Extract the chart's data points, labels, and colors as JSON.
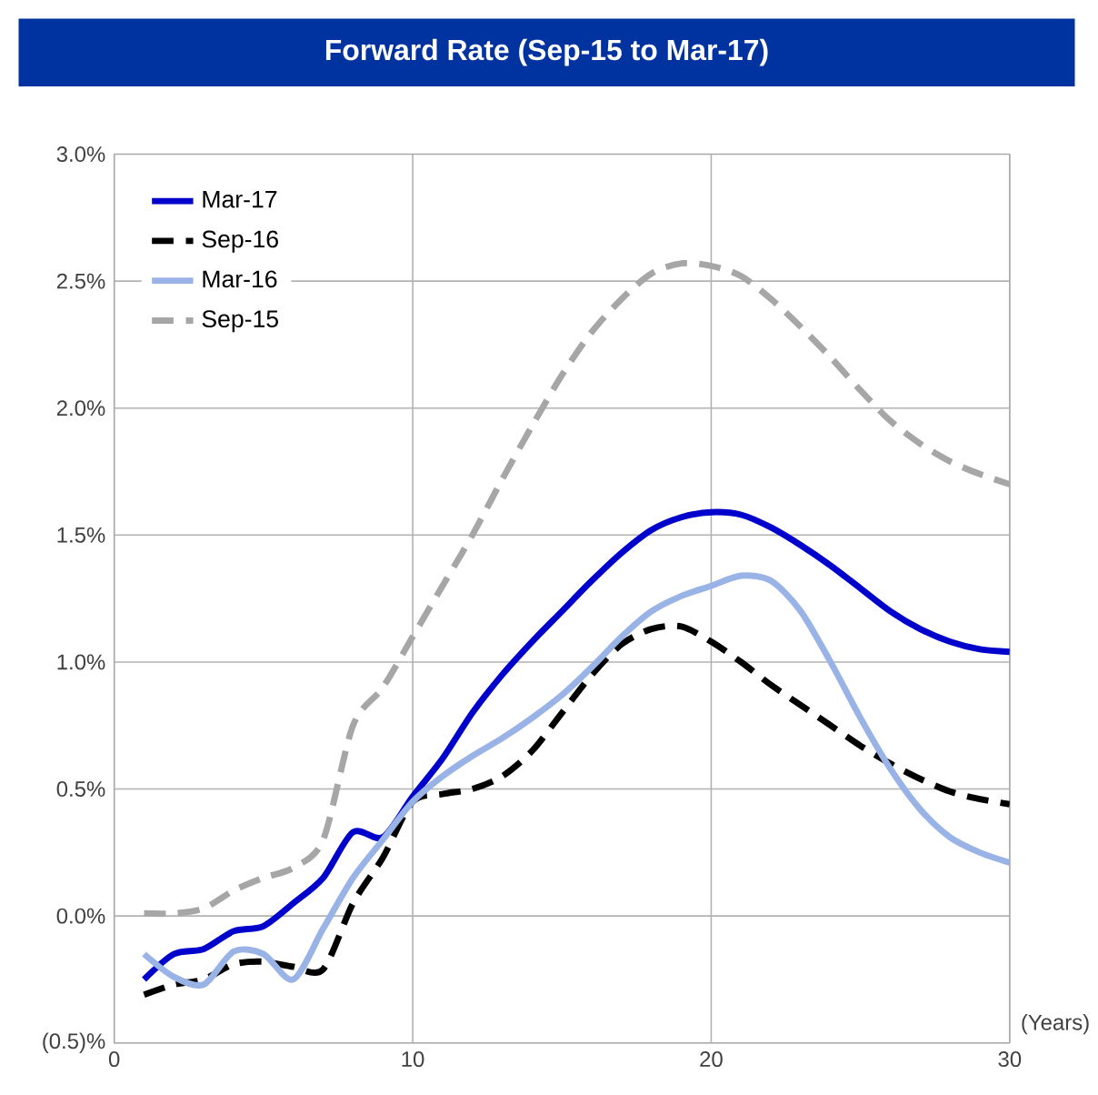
{
  "chart_data": {
    "type": "line",
    "title": "Forward Rate (Sep-15 to Mar-17)",
    "xlabel": "(Years)",
    "x": [
      1,
      2,
      3,
      4,
      5,
      6,
      7,
      8,
      9,
      10,
      11,
      12,
      13,
      14,
      15,
      16,
      17,
      18,
      19,
      20,
      21,
      22,
      23,
      24,
      25,
      26,
      27,
      28,
      29,
      30
    ],
    "series": [
      {
        "name": "Mar-17",
        "color": "#0000cc",
        "line_style": "solid",
        "values": [
          -0.25,
          -0.15,
          -0.13,
          -0.06,
          -0.04,
          0.05,
          0.15,
          0.33,
          0.31,
          0.47,
          0.62,
          0.8,
          0.95,
          1.08,
          1.2,
          1.32,
          1.43,
          1.52,
          1.57,
          1.59,
          1.58,
          1.53,
          1.46,
          1.38,
          1.29,
          1.2,
          1.13,
          1.08,
          1.05,
          1.04
        ]
      },
      {
        "name": "Sep-16",
        "color": "#000000",
        "line_style": "dashed",
        "values": [
          -0.31,
          -0.27,
          -0.25,
          -0.19,
          -0.18,
          -0.2,
          -0.21,
          0.05,
          0.23,
          0.45,
          0.48,
          0.5,
          0.55,
          0.65,
          0.8,
          0.95,
          1.07,
          1.13,
          1.14,
          1.08,
          1.0,
          0.91,
          0.83,
          0.75,
          0.67,
          0.6,
          0.54,
          0.49,
          0.46,
          0.44
        ]
      },
      {
        "name": "Mar-16",
        "color": "#99b3e6",
        "line_style": "solid",
        "values": [
          -0.15,
          -0.24,
          -0.27,
          -0.14,
          -0.15,
          -0.25,
          -0.05,
          0.15,
          0.3,
          0.45,
          0.55,
          0.63,
          0.7,
          0.78,
          0.87,
          0.98,
          1.1,
          1.2,
          1.26,
          1.3,
          1.34,
          1.32,
          1.2,
          1.0,
          0.78,
          0.58,
          0.42,
          0.31,
          0.25,
          0.21
        ]
      },
      {
        "name": "Sep-15",
        "color": "#a6a6a6",
        "line_style": "dashed",
        "values": [
          0.01,
          0.01,
          0.03,
          0.1,
          0.15,
          0.19,
          0.3,
          0.75,
          0.9,
          1.1,
          1.3,
          1.5,
          1.72,
          1.93,
          2.13,
          2.3,
          2.43,
          2.53,
          2.57,
          2.56,
          2.52,
          2.43,
          2.32,
          2.2,
          2.07,
          1.95,
          1.86,
          1.79,
          1.74,
          1.7
        ]
      }
    ],
    "xlim": [
      0,
      30
    ],
    "xticks": [
      0,
      10,
      20,
      30
    ],
    "ylim": [
      -0.5,
      3.0
    ],
    "yticks": [
      {
        "value": -0.5,
        "label": "(0.5)%"
      },
      {
        "value": 0.0,
        "label": "0.0%"
      },
      {
        "value": 0.5,
        "label": "0.5%"
      },
      {
        "value": 1.0,
        "label": "1.0%"
      },
      {
        "value": 1.5,
        "label": "1.5%"
      },
      {
        "value": 2.0,
        "label": "2.0%"
      },
      {
        "value": 2.5,
        "label": "2.5%"
      },
      {
        "value": 3.0,
        "label": "3.0%"
      }
    ],
    "grid": true,
    "legend": "top left",
    "marker": "none"
  }
}
